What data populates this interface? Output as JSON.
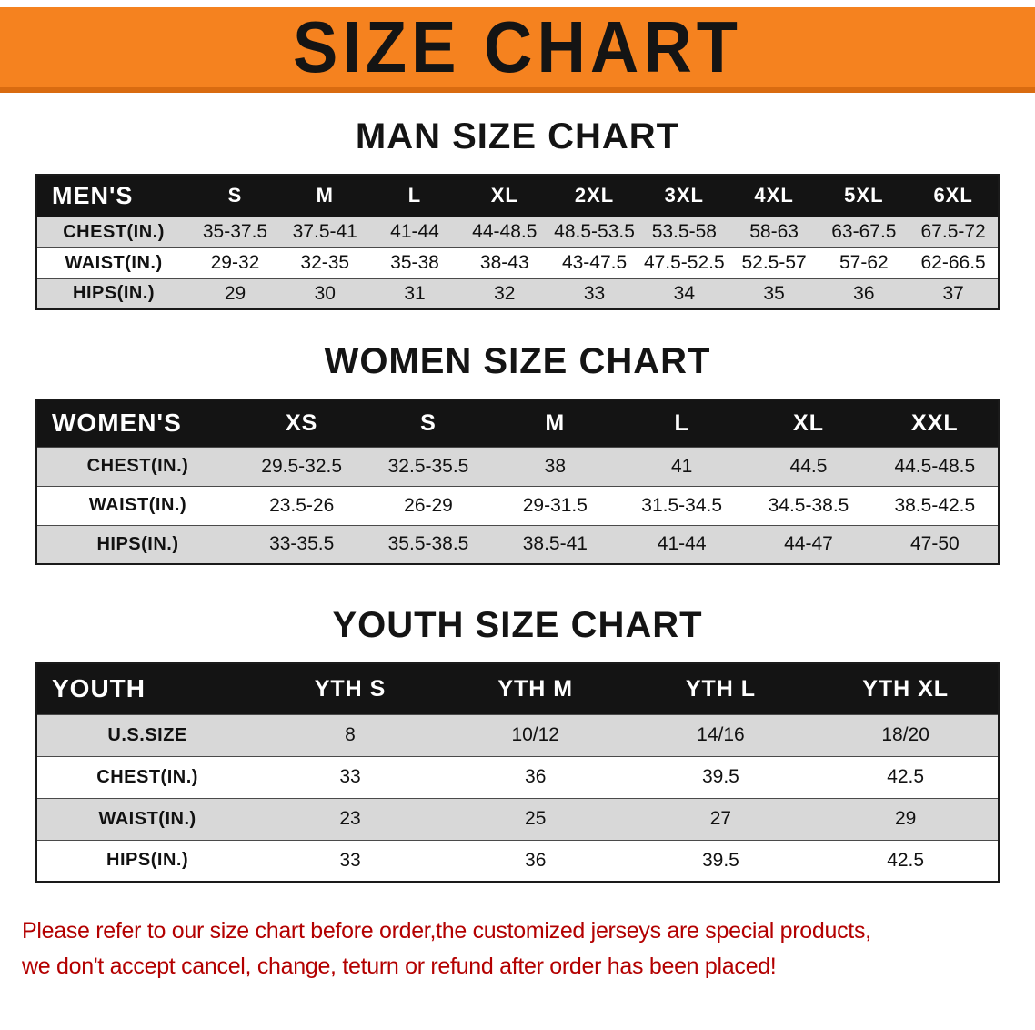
{
  "banner": {
    "title": "SIZE CHART"
  },
  "sections": [
    {
      "heading": "MAN SIZE CHART",
      "table": {
        "header": [
          "MEN'S",
          "S",
          "M",
          "L",
          "XL",
          "2XL",
          "3XL",
          "4XL",
          "5XL",
          "6XL"
        ],
        "rows": [
          [
            "CHEST(IN.)",
            "35-37.5",
            "37.5-41",
            "41-44",
            "44-48.5",
            "48.5-53.5",
            "53.5-58",
            "58-63",
            "63-67.5",
            "67.5-72"
          ],
          [
            "WAIST(IN.)",
            "29-32",
            "32-35",
            "35-38",
            "38-43",
            "43-47.5",
            "47.5-52.5",
            "52.5-57",
            "57-62",
            "62-66.5"
          ],
          [
            "HIPS(IN.)",
            "29",
            "30",
            "31",
            "32",
            "33",
            "34",
            "35",
            "36",
            "37"
          ]
        ]
      }
    },
    {
      "heading": "WOMEN SIZE CHART",
      "table": {
        "header": [
          "WOMEN'S",
          "XS",
          "S",
          "M",
          "L",
          "XL",
          "XXL"
        ],
        "rows": [
          [
            "CHEST(IN.)",
            "29.5-32.5",
            "32.5-35.5",
            "38",
            "41",
            "44.5",
            "44.5-48.5"
          ],
          [
            "WAIST(IN.)",
            "23.5-26",
            "26-29",
            "29-31.5",
            "31.5-34.5",
            "34.5-38.5",
            "38.5-42.5"
          ],
          [
            "HIPS(IN.)",
            "33-35.5",
            "35.5-38.5",
            "38.5-41",
            "41-44",
            "44-47",
            "47-50"
          ]
        ]
      }
    },
    {
      "heading": "YOUTH SIZE CHART",
      "table": {
        "header": [
          "YOUTH",
          "YTH S",
          "YTH M",
          "YTH L",
          "YTH XL"
        ],
        "rows": [
          [
            "U.S.SIZE",
            "8",
            "10/12",
            "14/16",
            "18/20"
          ],
          [
            "CHEST(IN.)",
            "33",
            "36",
            "39.5",
            "42.5"
          ],
          [
            "WAIST(IN.)",
            "23",
            "25",
            "27",
            "29"
          ],
          [
            "HIPS(IN.)",
            "33",
            "36",
            "39.5",
            "42.5"
          ]
        ]
      }
    }
  ],
  "footer": {
    "line1": "Please refer to our size chart before order,the customized jerseys are special products,",
    "line2": "we don't accept cancel, change, teturn or refund after order has been placed!"
  },
  "colors": {
    "banner_bg": "#f5821f",
    "banner_edge": "#d96b10",
    "table_header_bg": "#141414",
    "row_stripe": "#d8d8d8",
    "footer_text": "#b30000"
  }
}
